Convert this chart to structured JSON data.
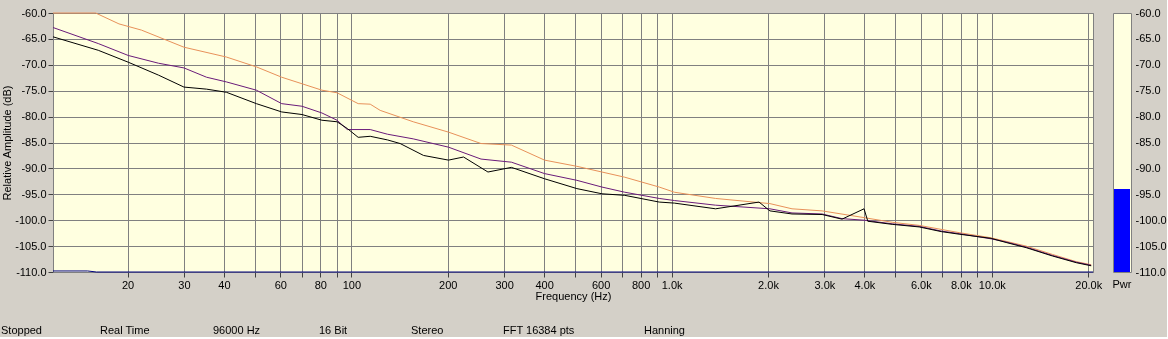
{
  "chart_data": [
    {
      "type": "line",
      "xlabel": "Frequency (Hz)",
      "ylabel": "Relative Amplitude (dB)",
      "log": "x",
      "grid": true,
      "legend": false,
      "marker": "none",
      "line_style": "solid",
      "xlim": [
        11.7,
        20700
      ],
      "ylim": [
        -110,
        -60
      ],
      "xticks": [
        {
          "value": 20,
          "label": "20"
        },
        {
          "value": 30,
          "label": "30"
        },
        {
          "value": 40,
          "label": "40"
        },
        {
          "value": 50,
          "label": null
        },
        {
          "value": 60,
          "label": "60"
        },
        {
          "value": 70,
          "label": null
        },
        {
          "value": 80,
          "label": "80"
        },
        {
          "value": 90,
          "label": null
        },
        {
          "value": 100,
          "label": "100"
        },
        {
          "value": 200,
          "label": "200"
        },
        {
          "value": 300,
          "label": "300"
        },
        {
          "value": 400,
          "label": "400"
        },
        {
          "value": 500,
          "label": null
        },
        {
          "value": 600,
          "label": "600"
        },
        {
          "value": 700,
          "label": null
        },
        {
          "value": 800,
          "label": "800"
        },
        {
          "value": 900,
          "label": null
        },
        {
          "value": 1000,
          "label": "1.0k"
        },
        {
          "value": 2000,
          "label": "2.0k"
        },
        {
          "value": 3000,
          "label": "3.0k"
        },
        {
          "value": 4000,
          "label": "4.0k"
        },
        {
          "value": 5000,
          "label": null
        },
        {
          "value": 6000,
          "label": "6.0k"
        },
        {
          "value": 7000,
          "label": null
        },
        {
          "value": 8000,
          "label": "8.0k"
        },
        {
          "value": 9000,
          "label": null
        },
        {
          "value": 10000,
          "label": "10.0k"
        },
        {
          "value": 20000,
          "label": "20.0k"
        }
      ],
      "yticks": [
        {
          "value": -60,
          "label": "-60.0"
        },
        {
          "value": -65,
          "label": "-65.0"
        },
        {
          "value": -70,
          "label": "-70.0"
        },
        {
          "value": -75,
          "label": "-75.0"
        },
        {
          "value": -80,
          "label": "-80.0"
        },
        {
          "value": -85,
          "label": "-85.0"
        },
        {
          "value": -90,
          "label": "-90.0"
        },
        {
          "value": -95,
          "label": "-95.0"
        },
        {
          "value": -100,
          "label": "-100.0"
        },
        {
          "value": -105,
          "label": "-105.0"
        },
        {
          "value": -110,
          "label": "-110.0"
        }
      ],
      "annotations": [
        "Stopped",
        "Real Time",
        "96000 Hz",
        "16 Bit",
        "Stereo",
        "FFT 16384 pts",
        "Hanning"
      ],
      "series": [
        {
          "color": "#000080",
          "x": [
            11.7,
            15,
            16,
            20700
          ],
          "values": [
            -109.8,
            -109.8,
            -110,
            -110
          ]
        },
        {
          "color": "#e8915a",
          "x": [
            11.7,
            15.9,
            18.8,
            22.1,
            30,
            40.7,
            50.5,
            60.6,
            80.9,
            90.2,
            105,
            114.5,
            123,
            156,
            201,
            254,
            316,
            401,
            506,
            606,
            714,
            915,
            1020,
            1372,
            2028,
            2377,
            2951,
            3990,
            4885,
            5930,
            7905,
            9950,
            12800,
            15450,
            18350,
            20430
          ],
          "values": [
            -60,
            -60,
            -62.1,
            -63.3,
            -66.6,
            -68.5,
            -70.4,
            -72.4,
            -74.9,
            -75.4,
            -77.5,
            -77.6,
            -78.8,
            -81,
            -83,
            -85.2,
            -85.5,
            -88.4,
            -89.6,
            -90.7,
            -91.7,
            -93.6,
            -94.6,
            -95.8,
            -96.8,
            -97.8,
            -98.2,
            -99.5,
            -100.4,
            -101,
            -102.4,
            -103.4,
            -105,
            -106.6,
            -108,
            -108.6
          ]
        },
        {
          "color": "#6a1b7a",
          "x": [
            11.7,
            16.2,
            20.1,
            25,
            30,
            35.3,
            40.7,
            50.5,
            60.6,
            70.1,
            80.9,
            90.2,
            97.1,
            114.5,
            129.6,
            156,
            201,
            254,
            316,
            401,
            506,
            606,
            714,
            915,
            1020,
            1372,
            2028,
            2377,
            2951,
            3405,
            3990,
            4885,
            5930,
            6950,
            7905,
            9950,
            11080,
            12800,
            15450,
            18350,
            20430
          ],
          "values": [
            -62.8,
            -65.9,
            -68.2,
            -69.7,
            -70.6,
            -72.4,
            -73.3,
            -74.9,
            -77.5,
            -78,
            -79.3,
            -80.7,
            -82.5,
            -82.5,
            -83.4,
            -84.3,
            -85.9,
            -88.2,
            -88.8,
            -91,
            -92.3,
            -93.6,
            -94.6,
            -95.8,
            -96.2,
            -97.1,
            -97.8,
            -98.6,
            -98.8,
            -99.7,
            -100,
            -100.7,
            -101.2,
            -102.1,
            -102.6,
            -103.6,
            -104.2,
            -105.2,
            -106.8,
            -108.1,
            -108.7
          ]
        },
        {
          "color": "#000000",
          "x": [
            11.7,
            16.2,
            20.1,
            25,
            30,
            35.3,
            40.7,
            50.5,
            60.6,
            70.1,
            80.9,
            90.2,
            97.1,
            105,
            114.5,
            129.6,
            142,
            168,
            201,
            224,
            267,
            316,
            401,
            506,
            606,
            714,
            915,
            1020,
            1372,
            1875,
            2028,
            2377,
            2951,
            3405,
            3990,
            4100,
            4885,
            5930,
            6950,
            7905,
            9950,
            11080,
            12800,
            15450,
            18350,
            20430
          ],
          "values": [
            -64.6,
            -67.2,
            -69.5,
            -72,
            -74.3,
            -74.7,
            -75.3,
            -77.5,
            -79.1,
            -79.6,
            -80.7,
            -81,
            -82.3,
            -84,
            -83.8,
            -84.5,
            -85.2,
            -87.5,
            -88.4,
            -87.8,
            -90.7,
            -89.8,
            -92,
            -93.9,
            -94.9,
            -95.2,
            -96.5,
            -96.7,
            -97.8,
            -96.5,
            -98.2,
            -98.8,
            -98.9,
            -99.8,
            -97.8,
            -100.2,
            -100.8,
            -101.3,
            -102.2,
            -102.7,
            -103.5,
            -104.3,
            -105.3,
            -106.9,
            -108.2,
            -108.8
          ]
        }
      ]
    },
    {
      "type": "bar",
      "categories": [
        "Pwr"
      ],
      "base": [
        -110
      ],
      "values": [
        16
      ],
      "color": "#0000ff",
      "ylim": [
        -110,
        -60
      ],
      "yticks": [
        {
          "value": -60,
          "label": "-60.0"
        },
        {
          "value": -65,
          "label": "-65.0"
        },
        {
          "value": -70,
          "label": "-70.0"
        },
        {
          "value": -75,
          "label": "-75.0"
        },
        {
          "value": -80,
          "label": "-80.0"
        },
        {
          "value": -85,
          "label": "-85.0"
        },
        {
          "value": -90,
          "label": "-90.0"
        },
        {
          "value": -95,
          "label": "-95.0"
        },
        {
          "value": -100,
          "label": "-100.0"
        },
        {
          "value": -105,
          "label": "-105.0"
        },
        {
          "value": -110,
          "label": "-110.0"
        }
      ]
    }
  ]
}
